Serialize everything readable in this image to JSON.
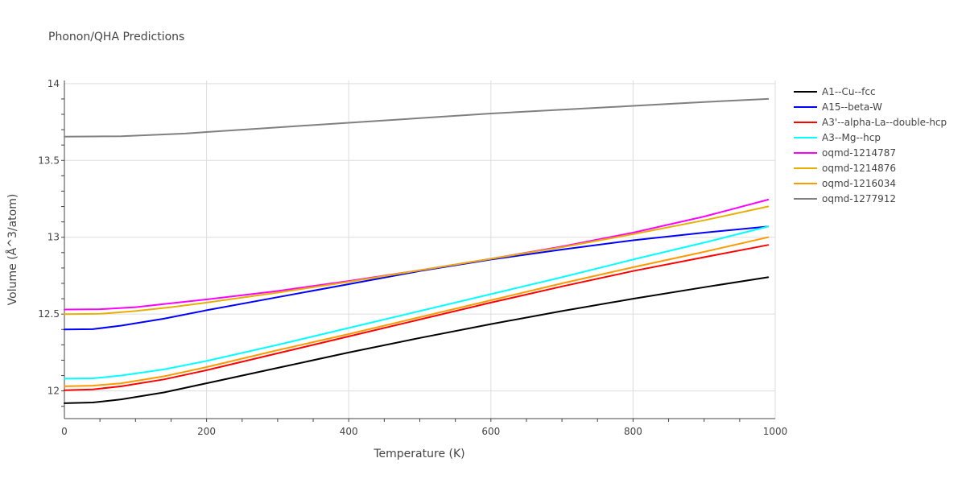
{
  "chart_data": {
    "type": "line",
    "title": "Phonon/QHA Predictions",
    "xlabel": "Temperature (K)",
    "ylabel": "Volume (Å^3/atom)",
    "xlim": [
      0,
      1000
    ],
    "ylim": [
      11.82,
      14.02
    ],
    "xticks": [
      0,
      200,
      400,
      600,
      800,
      1000
    ],
    "xtick_labels": [
      "0",
      "200",
      "400",
      "600",
      "800",
      "1000"
    ],
    "yticks": [
      12,
      12.5,
      13,
      13.5,
      14
    ],
    "ytick_labels": [
      "12",
      "12.5",
      "13",
      "13.5",
      "14"
    ],
    "grid": true,
    "legend_position": "right",
    "series": [
      {
        "name": "A1--Cu--fcc",
        "color": "#000000",
        "x": [
          0,
          40,
          80,
          140,
          200,
          300,
          400,
          500,
          600,
          700,
          800,
          900,
          990
        ],
        "y": [
          11.92,
          11.925,
          11.945,
          11.99,
          12.05,
          12.15,
          12.25,
          12.345,
          12.435,
          12.52,
          12.6,
          12.675,
          12.74
        ]
      },
      {
        "name": "A15--beta-W",
        "color": "#0000ff",
        "x": [
          0,
          40,
          80,
          140,
          200,
          300,
          400,
          500,
          600,
          700,
          800,
          900,
          990
        ],
        "y": [
          12.4,
          12.402,
          12.425,
          12.47,
          12.525,
          12.61,
          12.695,
          12.78,
          12.855,
          12.92,
          12.98,
          13.03,
          13.07
        ]
      },
      {
        "name": "A3'--alpha-La--double-hcp",
        "color": "#ff0000",
        "x": [
          0,
          40,
          80,
          140,
          200,
          300,
          400,
          500,
          600,
          700,
          800,
          900,
          990
        ],
        "y": [
          12.005,
          12.01,
          12.03,
          12.075,
          12.135,
          12.245,
          12.355,
          12.465,
          12.575,
          12.68,
          12.78,
          12.87,
          12.95
        ]
      },
      {
        "name": "A3--Mg--hcp",
        "color": "#00ffff",
        "x": [
          0,
          40,
          80,
          140,
          200,
          300,
          400,
          500,
          600,
          700,
          800,
          900,
          990
        ],
        "y": [
          12.08,
          12.082,
          12.1,
          12.14,
          12.195,
          12.3,
          12.41,
          12.52,
          12.63,
          12.74,
          12.855,
          12.965,
          13.07
        ]
      },
      {
        "name": "oqmd-1214787",
        "color": "#ff00ff",
        "x": [
          0,
          50,
          100,
          150,
          200,
          300,
          400,
          500,
          600,
          700,
          800,
          900,
          990
        ],
        "y": [
          12.53,
          12.532,
          12.545,
          12.57,
          12.595,
          12.65,
          12.715,
          12.785,
          12.86,
          12.94,
          13.03,
          13.135,
          13.245
        ]
      },
      {
        "name": "oqmd-1214876",
        "color": "#e6b000",
        "x": [
          0,
          50,
          100,
          150,
          200,
          300,
          400,
          500,
          600,
          700,
          800,
          900,
          990
        ],
        "y": [
          12.5,
          12.502,
          12.52,
          12.545,
          12.575,
          12.64,
          12.71,
          12.785,
          12.86,
          12.935,
          13.02,
          13.11,
          13.2
        ]
      },
      {
        "name": "oqmd-1216034",
        "color": "#ff9900",
        "x": [
          0,
          40,
          80,
          140,
          200,
          300,
          400,
          500,
          600,
          700,
          800,
          900,
          990
        ],
        "y": [
          12.03,
          12.034,
          12.05,
          12.095,
          12.155,
          12.265,
          12.37,
          12.48,
          12.59,
          12.7,
          12.805,
          12.905,
          13.0
        ]
      },
      {
        "name": "oqmd-1277912",
        "color": "#808080",
        "x": [
          0,
          40,
          80,
          170,
          200,
          300,
          400,
          500,
          600,
          700,
          800,
          900,
          990
        ],
        "y": [
          13.655,
          13.656,
          13.657,
          13.675,
          13.685,
          13.715,
          13.745,
          13.775,
          13.805,
          13.83,
          13.855,
          13.88,
          13.9
        ]
      }
    ]
  }
}
